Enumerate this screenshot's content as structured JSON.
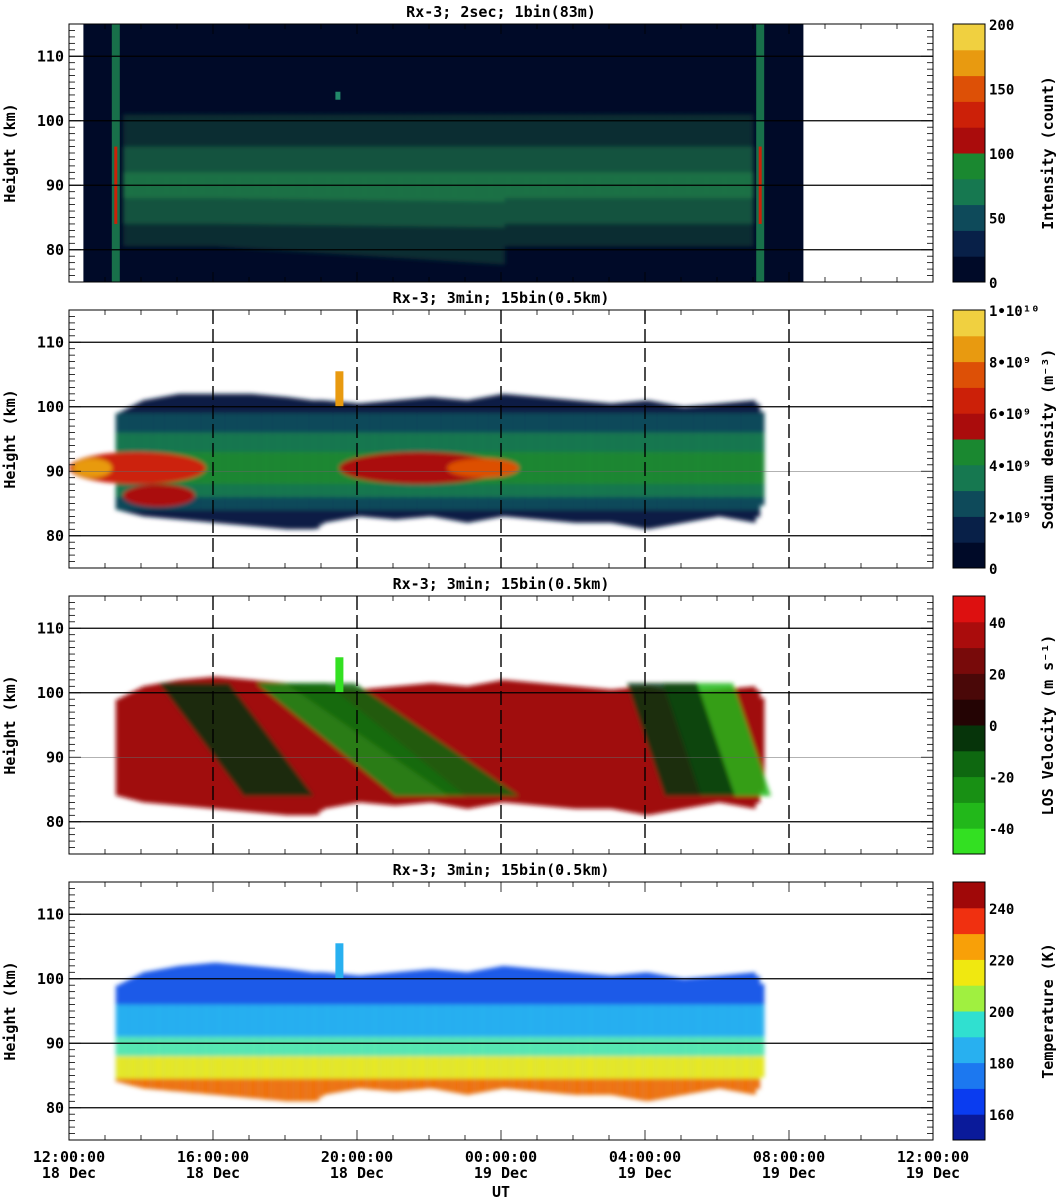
{
  "chart_data": [
    {
      "type": "heatmap",
      "title": "Rx-3;  2sec; 1bin(83m)",
      "ylabel": "Height (km)",
      "ylim": [
        75,
        115
      ],
      "yticks": [
        80,
        90,
        100,
        110
      ],
      "hlines": [
        80,
        90,
        100,
        110
      ],
      "colorbar": {
        "label": "Intensity (count)",
        "range": [
          0,
          200
        ],
        "ticks": [
          {
            "v": 0,
            "t": "0"
          },
          {
            "v": 50,
            "t": "50"
          },
          {
            "v": 100,
            "t": "100"
          },
          {
            "v": 150,
            "t": "150"
          },
          {
            "v": 200,
            "t": "200"
          }
        ],
        "colors": [
          "#000a28",
          "#082048",
          "#0e4a5a",
          "#167850",
          "#1a8830",
          "#aa0c0c",
          "#cc2008",
          "#dd5006",
          "#e89a10",
          "#f0d040"
        ]
      },
      "bands": [
        {
          "h0": 80.5,
          "h1": 101,
          "color": "#12463a"
        },
        {
          "h0": 84,
          "h1": 96,
          "color": "#18704a"
        },
        {
          "h0": 88,
          "h1": 92,
          "color": "#22884a"
        }
      ]
    },
    {
      "type": "heatmap",
      "title": "Rx-3; 3min; 15bin(0.5km)",
      "ylabel": "Height (km)",
      "ylim": [
        75,
        115
      ],
      "yticks": [
        80,
        90,
        100,
        110
      ],
      "hlines": [
        80,
        100,
        110
      ],
      "thinlines": [
        90
      ],
      "vlines": true,
      "colorbar": {
        "label": "Sodium density (m⁻³)",
        "range": [
          0,
          10
        ],
        "ticks": [
          {
            "v": 0,
            "t": "0"
          },
          {
            "v": 2,
            "t": "2•10⁹"
          },
          {
            "v": 4,
            "t": "4•10⁹"
          },
          {
            "v": 6,
            "t": "6•10⁹"
          },
          {
            "v": 8,
            "t": "8•10⁹"
          },
          {
            "v": 10,
            "t": "1•10¹⁰"
          }
        ],
        "colors": [
          "#000a28",
          "#082048",
          "#0e4a5a",
          "#167850",
          "#1a8830",
          "#aa0c0c",
          "#cc2008",
          "#dd5006",
          "#e89a10",
          "#f0d040"
        ]
      },
      "bands": [
        {
          "h0": 81,
          "h1": 102,
          "color": "#0c1c44"
        },
        {
          "h0": 84,
          "h1": 99,
          "color": "#0e4a5a"
        },
        {
          "h0": 86,
          "h1": 96,
          "color": "#167850"
        },
        {
          "h0": 88,
          "h1": 93,
          "color": "#1a8830"
        }
      ]
    },
    {
      "type": "heatmap",
      "title": "Rx-3; 3min; 15bin(0.5km)",
      "ylabel": "Height (km)",
      "ylim": [
        75,
        115
      ],
      "yticks": [
        80,
        90,
        100,
        110
      ],
      "hlines": [
        80,
        100,
        110
      ],
      "thinlines": [
        90
      ],
      "vlines": true,
      "colorbar": {
        "label": "LOS Velocity (m s⁻¹)",
        "range": [
          -50,
          50
        ],
        "ticks": [
          {
            "v": -40,
            "t": "-40"
          },
          {
            "v": -20,
            "t": "-20"
          },
          {
            "v": 0,
            "t": "0"
          },
          {
            "v": 20,
            "t": "20"
          },
          {
            "v": 40,
            "t": "40"
          }
        ],
        "colors": [
          "#33e022",
          "#22b81a",
          "#189014",
          "#0e6810",
          "#06340a",
          "#240404",
          "#4a0808",
          "#780a0a",
          "#aa0c0c",
          "#dd1010"
        ]
      },
      "bands": [
        {
          "h0": 81,
          "h1": 103,
          "color": "#a00c0c"
        },
        {
          "h0": 86,
          "h1": 94,
          "color": "#c01010"
        }
      ]
    },
    {
      "type": "heatmap",
      "title": "Rx-3; 3min; 15bin(0.5km)",
      "ylabel": "Height (km)",
      "xlabel": "UT",
      "ylim": [
        75,
        115
      ],
      "yticks": [
        80,
        90,
        100,
        110
      ],
      "hlines": [
        80,
        90,
        100,
        110
      ],
      "colorbar": {
        "label": "Temperature (K)",
        "range": [
          150,
          250
        ],
        "ticks": [
          {
            "v": 160,
            "t": "160"
          },
          {
            "v": 180,
            "t": "180"
          },
          {
            "v": 200,
            "t": "200"
          },
          {
            "v": 220,
            "t": "220"
          },
          {
            "v": 240,
            "t": "240"
          }
        ],
        "colors": [
          "#0a1a9a",
          "#0a3cf0",
          "#1c78f0",
          "#28b0f0",
          "#30e0d0",
          "#a0f040",
          "#f0e810",
          "#f8a008",
          "#f03010",
          "#a00808"
        ]
      },
      "bands": [
        {
          "h0": 81,
          "h1": 103,
          "color": "#1c5ae8"
        },
        {
          "h0": 81,
          "h1": 96,
          "color": "#28b0f0"
        },
        {
          "h0": 81,
          "h1": 91,
          "color": "#58e8b0"
        },
        {
          "h0": 81,
          "h1": 88,
          "color": "#e8e820"
        },
        {
          "h0": 81,
          "h1": 84.5,
          "color": "#f07010"
        }
      ]
    }
  ],
  "xaxis": {
    "range": [
      0,
      24
    ],
    "ticks": [
      {
        "h": 0,
        "time": "12:00:00",
        "date": "18 Dec"
      },
      {
        "h": 4,
        "time": "16:00:00",
        "date": "18 Dec"
      },
      {
        "h": 8,
        "time": "20:00:00",
        "date": "18 Dec"
      },
      {
        "h": 12,
        "time": "00:00:00",
        "date": "19 Dec"
      },
      {
        "h": 16,
        "time": "04:00:00",
        "date": "19 Dec"
      },
      {
        "h": 20,
        "time": "08:00:00",
        "date": "19 Dec"
      },
      {
        "h": 24,
        "time": "12:00:00",
        "date": "19 Dec"
      }
    ],
    "label": "UT"
  },
  "profile": {
    "x": [
      1.3,
      2,
      3,
      4,
      5,
      6,
      6.7,
      7,
      8,
      9,
      10,
      11,
      12,
      13,
      14,
      15,
      16,
      17,
      18,
      19,
      19.2
    ],
    "top": [
      99,
      101,
      102,
      102.5,
      102,
      101.5,
      101,
      101,
      100.5,
      101,
      101.5,
      101,
      102,
      101.5,
      101,
      100.5,
      101,
      100,
      100.5,
      101,
      99
    ],
    "bottom": [
      84,
      83,
      82.5,
      82,
      81.5,
      81,
      80.5,
      82,
      83,
      82.5,
      83,
      82,
      83,
      82.5,
      82,
      82,
      81,
      82,
      83,
      82,
      85
    ]
  },
  "intensity_window": [
    0.4,
    20.4
  ]
}
